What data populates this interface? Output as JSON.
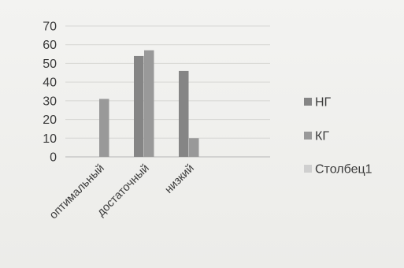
{
  "chart_data": {
    "type": "bar",
    "categories": [
      "оптимальный",
      "достаточный",
      "низкий"
    ],
    "series": [
      {
        "name": "НГ",
        "values": [
          0,
          54,
          46
        ],
        "color": "#858585"
      },
      {
        "name": "КГ",
        "values": [
          31,
          57,
          10
        ],
        "color": "#999999"
      },
      {
        "name": "Столбец1",
        "values": [
          0,
          0,
          0
        ],
        "color": "#cfcfcf"
      }
    ],
    "ylim": [
      0,
      70
    ],
    "yticks": [
      0,
      10,
      20,
      30,
      40,
      50,
      60,
      70
    ],
    "grid": true,
    "legend": "right",
    "title": "",
    "xlabel": "",
    "ylabel": ""
  }
}
